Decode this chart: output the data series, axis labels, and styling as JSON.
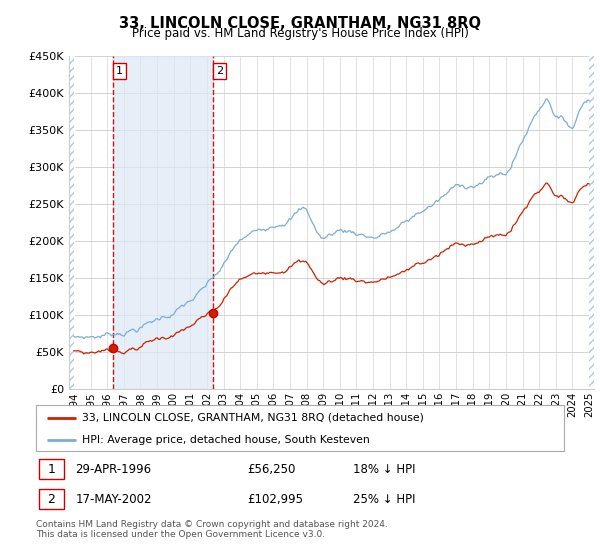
{
  "title": "33, LINCOLN CLOSE, GRANTHAM, NG31 8RQ",
  "subtitle": "Price paid vs. HM Land Registry's House Price Index (HPI)",
  "ylim": [
    0,
    450000
  ],
  "yticks": [
    0,
    50000,
    100000,
    150000,
    200000,
    250000,
    300000,
    350000,
    400000,
    450000
  ],
  "ytick_labels": [
    "£0",
    "£50K",
    "£100K",
    "£150K",
    "£200K",
    "£250K",
    "£300K",
    "£350K",
    "£400K",
    "£450K"
  ],
  "sale1_date": 1996.37,
  "sale1_price": 56250,
  "sale1_label": "1",
  "sale1_text": "29-APR-1996",
  "sale1_price_text": "£56,250",
  "sale1_hpi_text": "18% ↓ HPI",
  "sale2_date": 2002.38,
  "sale2_price": 102995,
  "sale2_label": "2",
  "sale2_text": "17-MAY-2002",
  "sale2_price_text": "£102,995",
  "sale2_hpi_text": "25% ↓ HPI",
  "legend_entry1": "33, LINCOLN CLOSE, GRANTHAM, NG31 8RQ (detached house)",
  "legend_entry2": "HPI: Average price, detached house, South Kesteven",
  "footer": "Contains HM Land Registry data © Crown copyright and database right 2024.\nThis data is licensed under the Open Government Licence v3.0.",
  "hatch_color": "#dce8f5",
  "between_shade_color": "#dce8f5",
  "vline_color": "#cc0000",
  "sale_dot_color": "#cc0000",
  "hpi_line_color": "#7aaed6",
  "price_line_color": "#cc2200",
  "xlim_left": 1993.7,
  "xlim_right": 2025.3
}
